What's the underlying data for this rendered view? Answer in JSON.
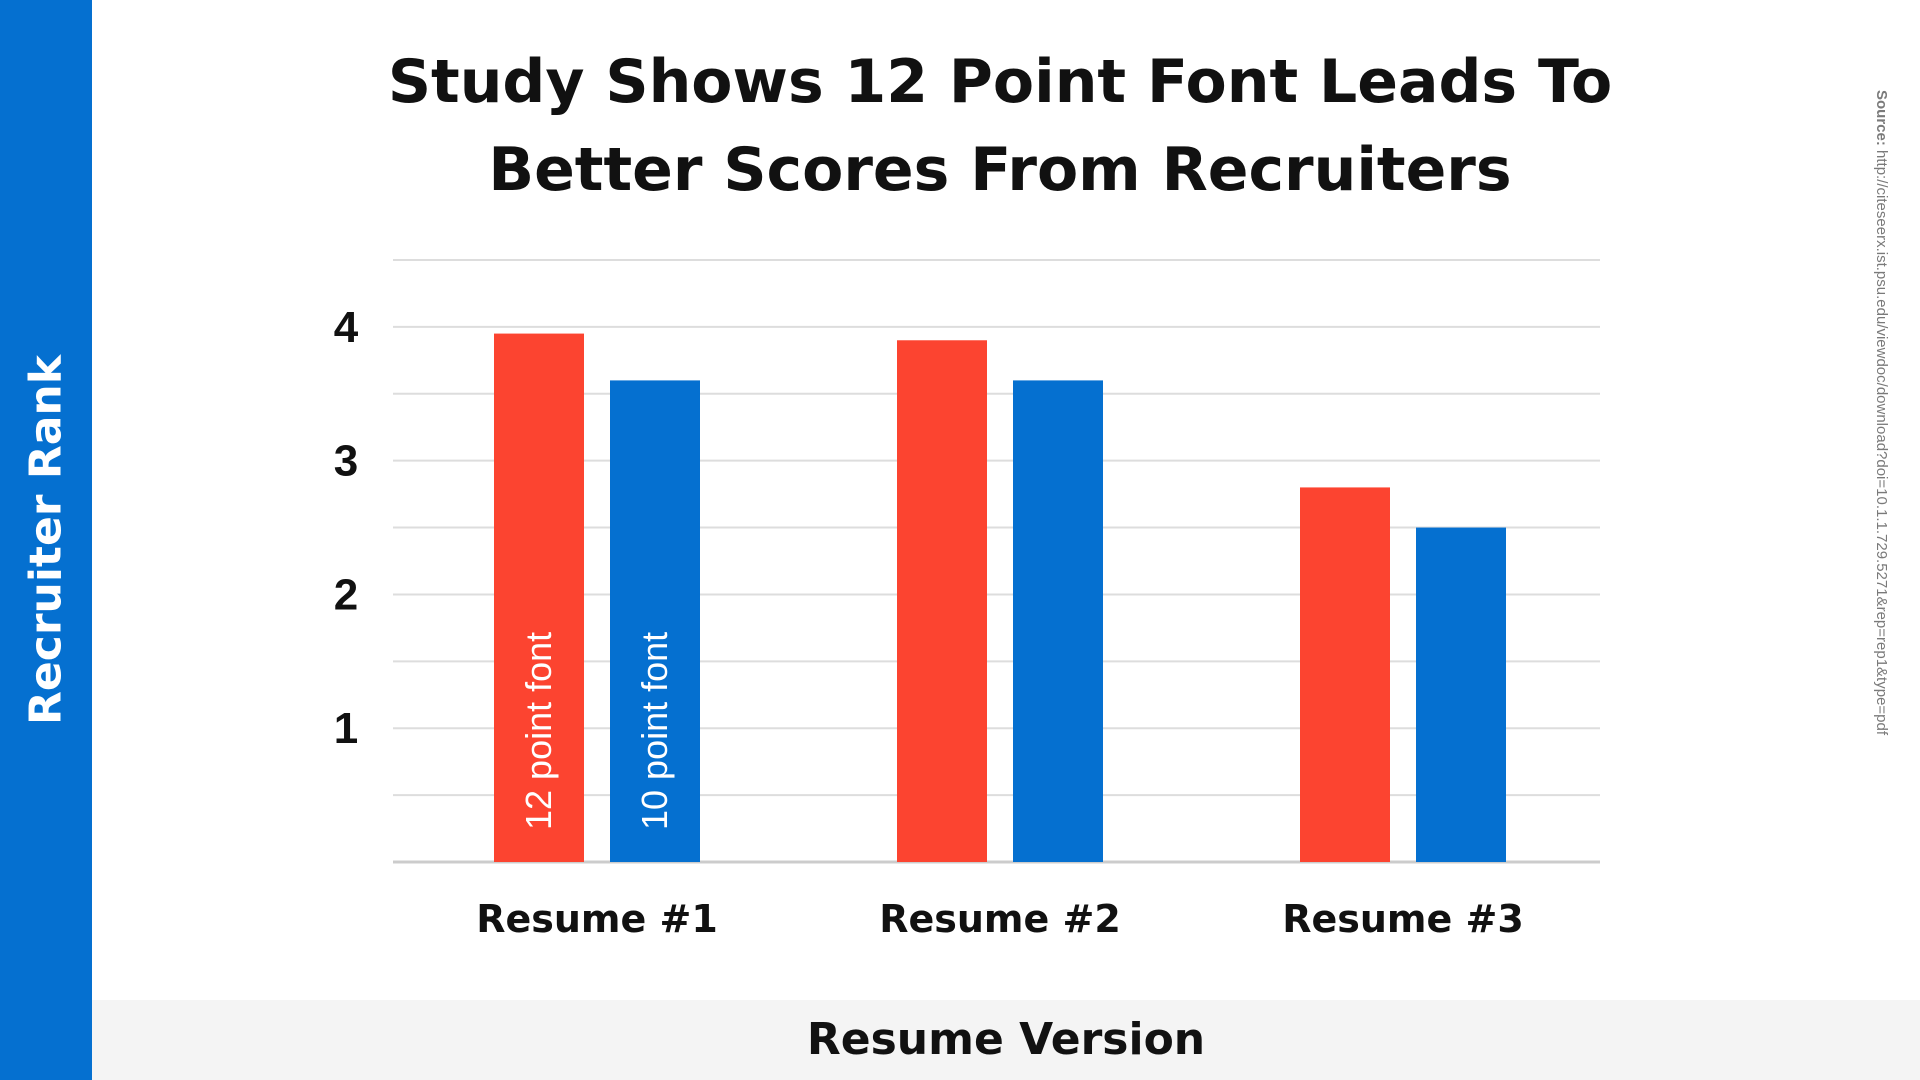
{
  "chart_data": {
    "type": "bar",
    "title_lines": [
      "Study Shows 12 Point Font Leads To",
      "Better Scores From Recruiters"
    ],
    "xlabel": "Resume Version",
    "ylabel": "Recruiter Rank",
    "categories": [
      "Resume #1",
      "Resume #2",
      "Resume #3"
    ],
    "series": [
      {
        "name": "12 point font",
        "color": "#fc4430",
        "values": [
          3.95,
          3.9,
          2.8
        ]
      },
      {
        "name": "10 point font",
        "color": "#0570d0",
        "values": [
          3.6,
          3.6,
          2.5
        ]
      }
    ],
    "ylim": [
      0,
      4.5
    ],
    "yticks": [
      1,
      2,
      3,
      4
    ],
    "grid": true,
    "legend": "inside-bars"
  },
  "source": {
    "label": "Source:",
    "text": "http://citeseerx.ist.psu.edu/viewdoc/download?doi=10.1.1.729.5271&rep=rep1&type=pdf"
  }
}
